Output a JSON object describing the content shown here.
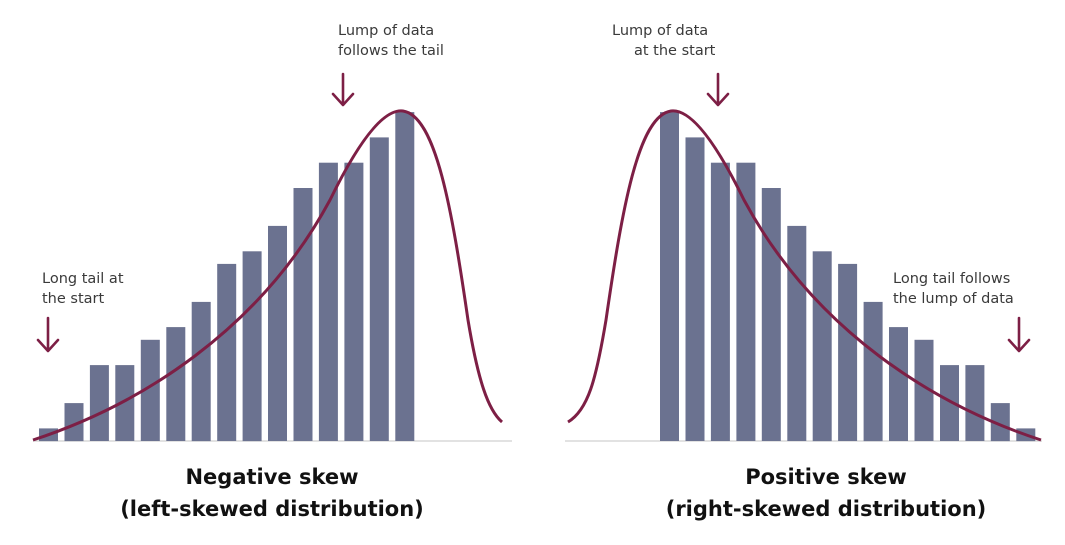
{
  "colors": {
    "bar": "#6b7290",
    "curve": "#7d1f45",
    "arrow": "#7d1f45",
    "baseline": "#d8d8d8"
  },
  "chart_data": [
    {
      "type": "bar",
      "title": "Negative skew",
      "subtitle": "(left-skewed distribution)",
      "values": [
        1,
        3,
        6,
        6,
        8,
        9,
        11,
        14,
        15,
        17,
        20,
        22,
        22,
        24,
        26
      ],
      "curve": "skewed-normal, long tail on the left",
      "grid": false,
      "annotations": [
        {
          "lines": [
            "Long tail at",
            "the start"
          ],
          "arrow": "down"
        },
        {
          "lines": [
            "Lump of data",
            "follows the tail"
          ],
          "arrow": "down"
        }
      ]
    },
    {
      "type": "bar",
      "title": "Positive skew",
      "subtitle": "(right-skewed distribution)",
      "values": [
        26,
        24,
        22,
        22,
        20,
        17,
        15,
        14,
        11,
        9,
        8,
        6,
        6,
        3,
        1
      ],
      "curve": "skewed-normal, long tail on the right",
      "grid": false,
      "annotations": [
        {
          "lines": [
            "Lump of data",
            "at the start"
          ],
          "arrow": "down"
        },
        {
          "lines": [
            "Long tail follows",
            "the lump of data"
          ],
          "arrow": "down"
        }
      ]
    }
  ]
}
